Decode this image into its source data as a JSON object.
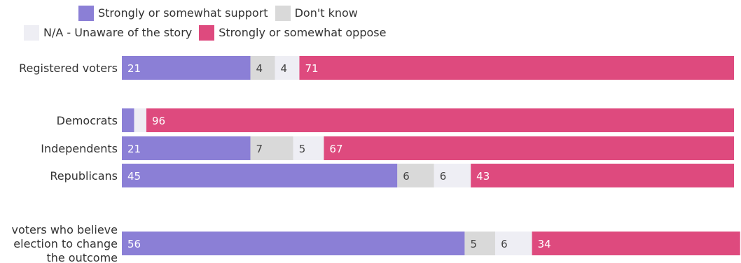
{
  "chart_data": {
    "type": "bar",
    "orientation": "horizontal",
    "stacked": true,
    "xlim": [
      0,
      100
    ],
    "legend_position": "top-center",
    "legend_order": [
      0,
      3,
      1,
      2
    ],
    "categories": [
      "Registered voters",
      "Democrats",
      "Independents",
      "Republicans",
      "voters who believe election to change the outcome"
    ],
    "category_lines": [
      [
        "Registered voters"
      ],
      [
        "Democrats"
      ],
      [
        "Independents"
      ],
      [
        "Republicans"
      ],
      [
        "voters who believe",
        "election to change",
        "the outcome"
      ]
    ],
    "series": [
      {
        "name": "Strongly or somewhat support",
        "color": "#8b7fd6",
        "values": [
          21,
          2,
          21,
          45,
          56
        ],
        "labels": [
          "21",
          "",
          "21",
          "45",
          "56"
        ]
      },
      {
        "name": "Don't know",
        "color": "#d9d9d9",
        "values": [
          4,
          0,
          7,
          6,
          5
        ],
        "labels": [
          "4",
          "",
          "7",
          "6",
          "5"
        ]
      },
      {
        "name": "N/A - Unaware of the story",
        "color": "#eeeef4",
        "values": [
          4,
          2,
          5,
          6,
          6
        ],
        "labels": [
          "4",
          "",
          "5",
          "6",
          "6"
        ]
      },
      {
        "name": "Strongly or somewhat oppose",
        "color": "#de4a7e",
        "values": [
          71,
          96,
          67,
          43,
          34
        ],
        "labels": [
          "71",
          "96",
          "67",
          "43",
          "34"
        ]
      }
    ]
  }
}
